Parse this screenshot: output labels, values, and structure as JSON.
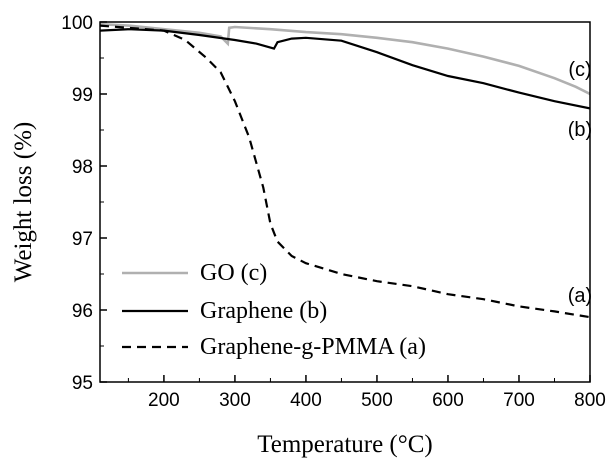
{
  "chart_data": {
    "type": "line",
    "xlabel": "Temperature (°C)",
    "ylabel": "Weight loss (%)",
    "xlim": [
      110,
      800
    ],
    "ylim": [
      95,
      100
    ],
    "x_ticks": [
      200,
      300,
      400,
      500,
      600,
      700,
      800
    ],
    "y_ticks": [
      95,
      96,
      97,
      98,
      99,
      100
    ],
    "legend_position": "bottom-left",
    "grid": false,
    "series": [
      {
        "name": "GO (c)",
        "end_label": "(c)",
        "color": "#b0b0b0",
        "dash": "solid",
        "points": [
          [
            110,
            99.97
          ],
          [
            150,
            99.95
          ],
          [
            200,
            99.9
          ],
          [
            250,
            99.85
          ],
          [
            280,
            99.8
          ],
          [
            290,
            99.7
          ],
          [
            292,
            99.92
          ],
          [
            300,
            99.93
          ],
          [
            350,
            99.9
          ],
          [
            400,
            99.86
          ],
          [
            450,
            99.83
          ],
          [
            500,
            99.78
          ],
          [
            550,
            99.72
          ],
          [
            600,
            99.63
          ],
          [
            650,
            99.52
          ],
          [
            700,
            99.39
          ],
          [
            750,
            99.22
          ],
          [
            780,
            99.1
          ],
          [
            800,
            99.0
          ]
        ]
      },
      {
        "name": "Graphene (b)",
        "end_label": "(b)",
        "color": "#000000",
        "dash": "solid",
        "points": [
          [
            110,
            99.88
          ],
          [
            150,
            99.9
          ],
          [
            200,
            99.88
          ],
          [
            250,
            99.82
          ],
          [
            300,
            99.75
          ],
          [
            330,
            99.7
          ],
          [
            355,
            99.63
          ],
          [
            360,
            99.72
          ],
          [
            380,
            99.77
          ],
          [
            400,
            99.78
          ],
          [
            450,
            99.74
          ],
          [
            500,
            99.58
          ],
          [
            550,
            99.4
          ],
          [
            600,
            99.25
          ],
          [
            650,
            99.15
          ],
          [
            700,
            99.02
          ],
          [
            750,
            98.9
          ],
          [
            800,
            98.8
          ]
        ]
      },
      {
        "name": "Graphene-g-PMMA (a)",
        "end_label": "(a)",
        "color": "#000000",
        "dash": "dashed",
        "points": [
          [
            110,
            99.95
          ],
          [
            150,
            99.92
          ],
          [
            200,
            99.88
          ],
          [
            230,
            99.75
          ],
          [
            260,
            99.5
          ],
          [
            280,
            99.3
          ],
          [
            300,
            98.9
          ],
          [
            320,
            98.4
          ],
          [
            340,
            97.7
          ],
          [
            350,
            97.2
          ],
          [
            360,
            96.95
          ],
          [
            380,
            96.75
          ],
          [
            400,
            96.65
          ],
          [
            450,
            96.5
          ],
          [
            500,
            96.4
          ],
          [
            550,
            96.33
          ],
          [
            600,
            96.22
          ],
          [
            650,
            96.15
          ],
          [
            700,
            96.05
          ],
          [
            750,
            95.98
          ],
          [
            800,
            95.9
          ]
        ]
      }
    ]
  }
}
